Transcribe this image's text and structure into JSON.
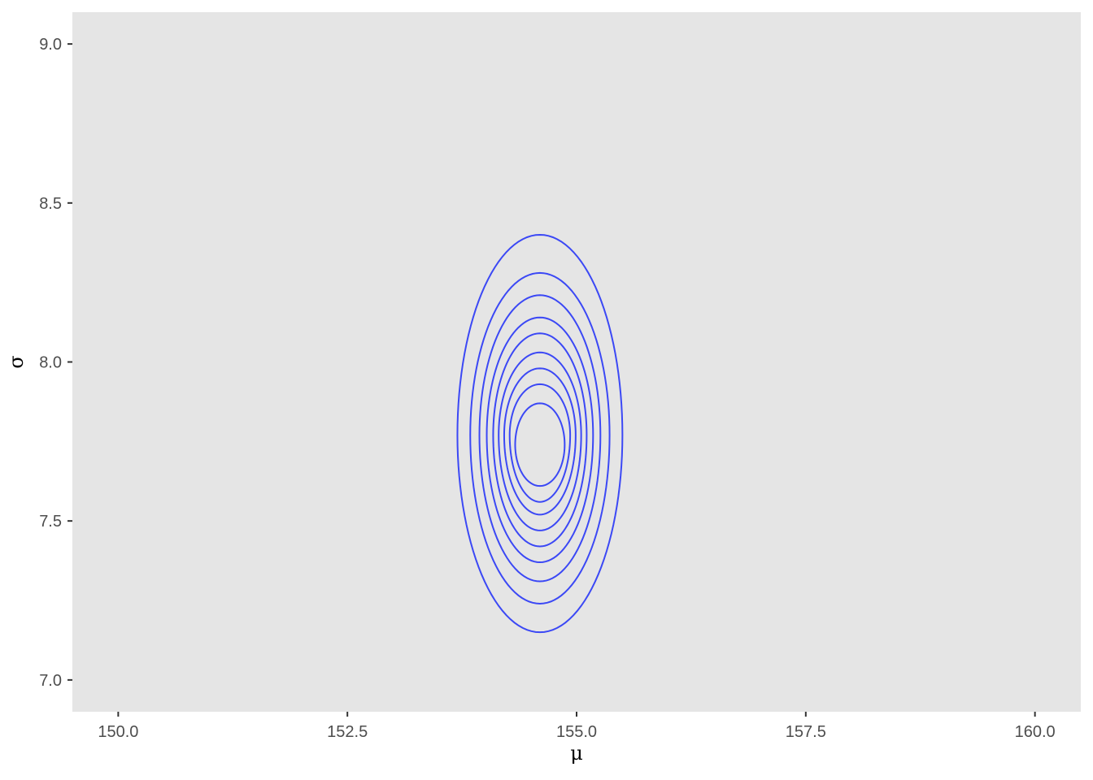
{
  "chart_data": {
    "type": "contour",
    "title": "",
    "xlabel": "μ",
    "ylabel": "σ",
    "xlim": [
      149.5,
      160.5
    ],
    "ylim": [
      6.9,
      9.1
    ],
    "x_ticks": [
      150.0,
      152.5,
      155.0,
      157.5,
      160.0
    ],
    "x_tick_labels": [
      "150.0",
      "152.5",
      "155.0",
      "157.5",
      "160.0"
    ],
    "y_ticks": [
      7.0,
      7.5,
      8.0,
      8.5,
      9.0
    ],
    "y_tick_labels": [
      "7.0",
      "7.5",
      "8.0",
      "8.5",
      "9.0"
    ],
    "grid": false,
    "panel_background": "#e5e5e5",
    "line_color": "#3b48f5",
    "contours": [
      {
        "center": [
          154.6,
          7.77
        ],
        "x_range": [
          153.7,
          155.5
        ],
        "y_range": [
          7.15,
          8.4
        ]
      },
      {
        "center": [
          154.6,
          7.77
        ],
        "x_range": [
          153.84,
          155.36
        ],
        "y_range": [
          7.24,
          8.28
        ]
      },
      {
        "center": [
          154.6,
          7.77
        ],
        "x_range": [
          153.94,
          155.26
        ],
        "y_range": [
          7.31,
          8.21
        ]
      },
      {
        "center": [
          154.6,
          7.77
        ],
        "x_range": [
          154.02,
          155.18
        ],
        "y_range": [
          7.37,
          8.14
        ]
      },
      {
        "center": [
          154.6,
          7.77
        ],
        "x_range": [
          154.09,
          155.11
        ],
        "y_range": [
          7.42,
          8.09
        ]
      },
      {
        "center": [
          154.6,
          7.77
        ],
        "x_range": [
          154.15,
          155.05
        ],
        "y_range": [
          7.47,
          8.03
        ]
      },
      {
        "center": [
          154.6,
          7.77
        ],
        "x_range": [
          154.21,
          154.99
        ],
        "y_range": [
          7.52,
          7.98
        ]
      },
      {
        "center": [
          154.6,
          7.77
        ],
        "x_range": [
          154.27,
          154.93
        ],
        "y_range": [
          7.56,
          7.93
        ]
      },
      {
        "center": [
          154.6,
          7.74
        ],
        "x_range": [
          154.33,
          154.87
        ],
        "y_range": [
          7.61,
          7.87
        ]
      }
    ]
  }
}
